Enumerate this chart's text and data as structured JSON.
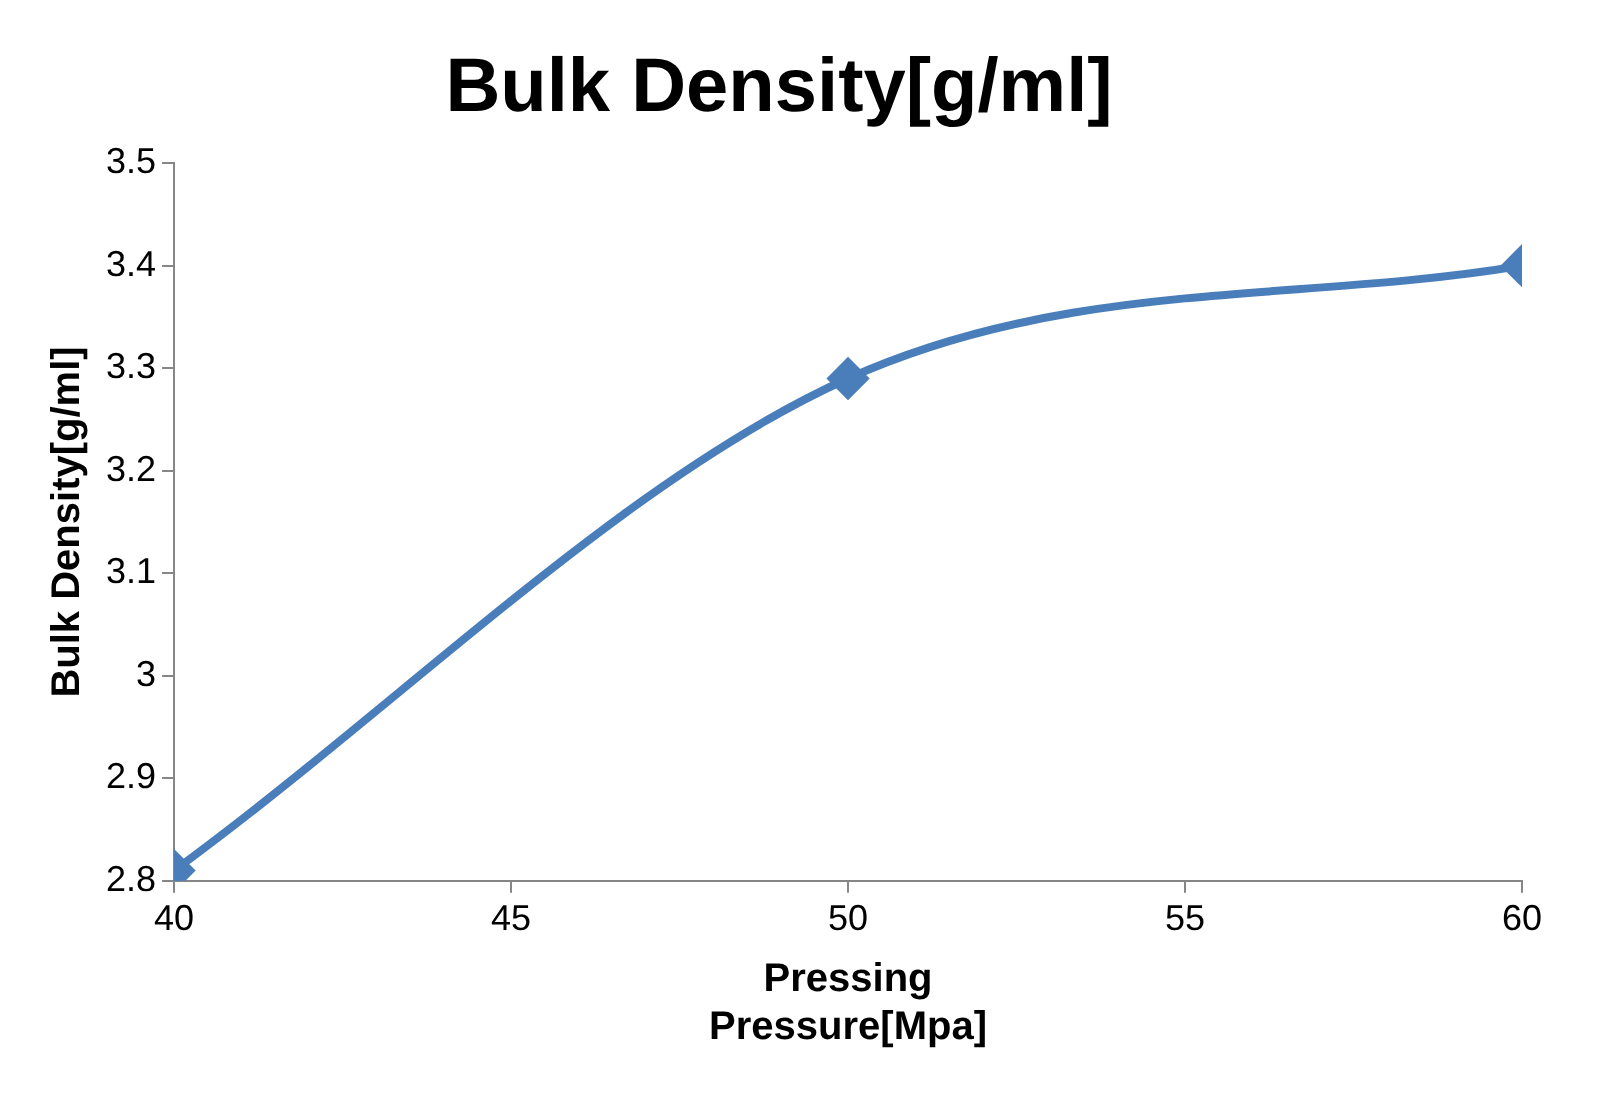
{
  "chart_data": {
    "type": "line",
    "title": "Bulk Density[g/ml]",
    "xlabel": "Pressing Pressure[Mpa]",
    "ylabel": "Bulk Density[g/ml]",
    "x": [
      40,
      50,
      60
    ],
    "series": [
      {
        "color": "#4a7ebb",
        "values": [
          2.81,
          3.29,
          3.4
        ]
      }
    ],
    "xlim": [
      40,
      60
    ],
    "xticks": [
      40,
      45,
      50,
      55,
      60
    ],
    "ylim": [
      2.8,
      3.5
    ],
    "yticks": [
      2.8,
      2.9,
      3,
      3.1,
      3.2,
      3.3,
      3.4,
      3.5
    ],
    "grid": false,
    "legend": false,
    "marker": "diamond",
    "line_style": "solid"
  }
}
